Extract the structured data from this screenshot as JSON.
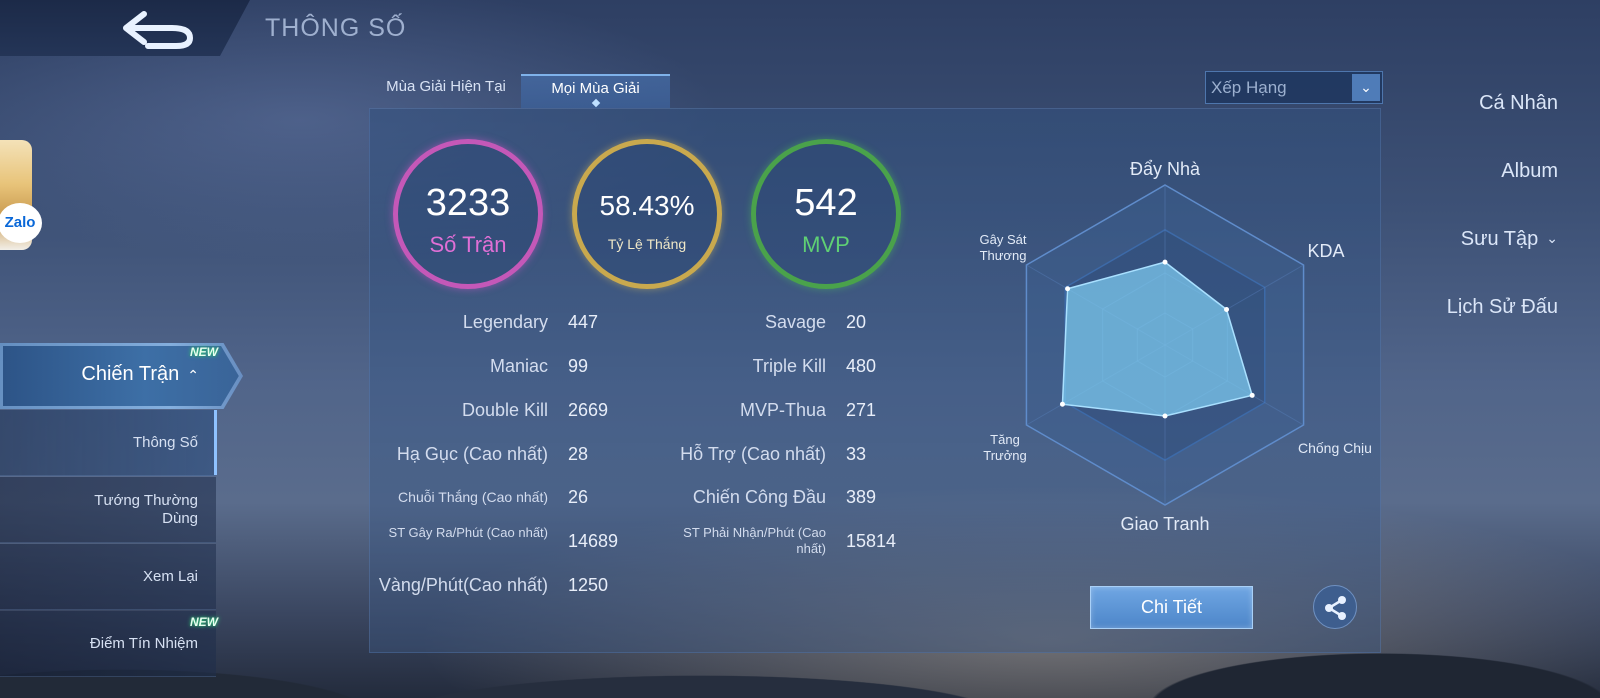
{
  "header": {
    "title": "THÔNG SỐ"
  },
  "sidebar": {
    "items": [
      {
        "label": "Cá Nhân"
      },
      {
        "label": "Album"
      },
      {
        "label": "Sưu Tập",
        "chevron": "⌄"
      },
      {
        "label": "Lịch Sử Đấu"
      },
      {
        "label": "Chiến Trận",
        "chevron": "⌃",
        "badge": "NEW"
      }
    ],
    "subitems": [
      {
        "label": "Thông Số",
        "selected": true
      },
      {
        "label": "Tướng Thường Dùng"
      },
      {
        "label": "Xem Lại"
      },
      {
        "label": "Điểm Tín Nhiệm",
        "badge": "NEW"
      }
    ],
    "overlay_badge": "Zalo"
  },
  "tabs": [
    {
      "label": "Mùa Giải Hiện Tại",
      "active": false
    },
    {
      "label": "Mọi Mùa Giải",
      "active": true
    }
  ],
  "filter": {
    "value": "Xếp Hạng",
    "arrow": "⌄"
  },
  "summary": {
    "matches": {
      "value": "3233",
      "label": "Số Trận",
      "color": "#c458b8"
    },
    "winrate": {
      "value": "58.43%",
      "label": "Tỷ Lệ Thắng",
      "color": "#c9a94e"
    },
    "mvp": {
      "value": "542",
      "label": "MVP",
      "color": "#4aa24b"
    }
  },
  "stats_left": [
    {
      "label": "Legendary",
      "value": "447"
    },
    {
      "label": "Maniac",
      "value": "99"
    },
    {
      "label": "Double Kill",
      "value": "2669"
    },
    {
      "label": "Hạ Gục (Cao nhất)",
      "value": "28"
    },
    {
      "label": "Chuỗi Thắng (Cao nhất)",
      "value": "26"
    },
    {
      "label": "ST Gây Ra/Phút (Cao nhất)",
      "value": "14689"
    },
    {
      "label": "Vàng/Phút(Cao nhất)",
      "value": "1250"
    }
  ],
  "stats_right": [
    {
      "label": "Savage",
      "value": "20"
    },
    {
      "label": "Triple Kill",
      "value": "480"
    },
    {
      "label": "MVP-Thua",
      "value": "271"
    },
    {
      "label": "Hỗ Trợ (Cao nhất)",
      "value": "33"
    },
    {
      "label": "Chiến Công Đầu",
      "value": "389"
    },
    {
      "label": "ST Phải Nhận/Phút (Cao nhất)",
      "value": "15814"
    }
  ],
  "radar": {
    "axes": [
      "Đẩy Nhà",
      "KDA",
      "Chống Chịu",
      "Giao Tranh",
      "Tăng Trưởng",
      "Gây Sát Thương"
    ],
    "values": [
      0.7,
      0.6,
      0.85,
      0.6,
      1.0,
      0.95
    ],
    "fill_color": "#7cc8ee"
  },
  "actions": {
    "detail_label": "Chi Tiết",
    "share_icon": "share-icon"
  }
}
